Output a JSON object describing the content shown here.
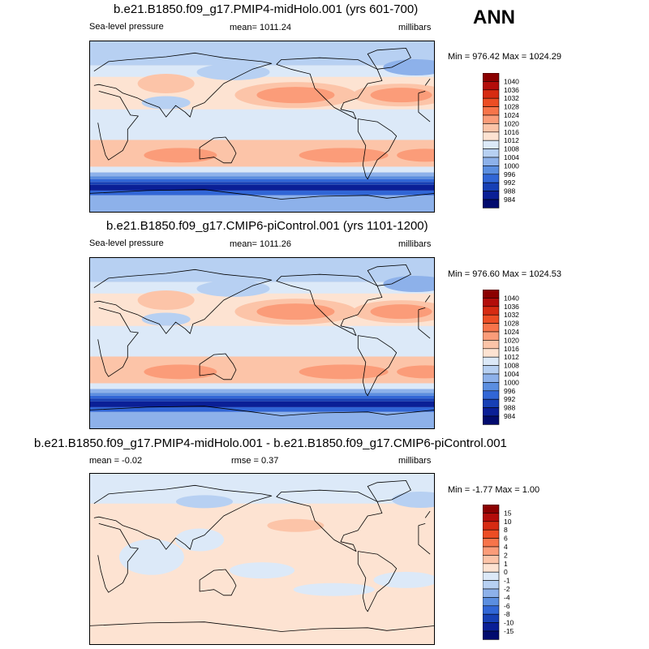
{
  "season": "ANN",
  "panels": [
    {
      "title": "b.e21.B1850.f09_g17.PMIP4-midHolo.001 (yrs 601-700)",
      "left_label": "Sea-level pressure",
      "center_label": "mean= 1011.24",
      "right_label": "millibars",
      "minmax": "Min = 976.42 Max = 1024.29",
      "colorbar_labels": [
        "1040",
        "1036",
        "1032",
        "1028",
        "1024",
        "1020",
        "1016",
        "1012",
        "1008",
        "1004",
        "1000",
        "996",
        "992",
        "988",
        "984"
      ]
    },
    {
      "title": "b.e21.B1850.f09_g17.CMIP6-piControl.001 (yrs 1101-1200)",
      "left_label": "Sea-level pressure",
      "center_label": "mean= 1011.26",
      "right_label": "millibars",
      "minmax": "Min = 976.60 Max = 1024.53",
      "colorbar_labels": [
        "1040",
        "1036",
        "1032",
        "1028",
        "1024",
        "1020",
        "1016",
        "1012",
        "1008",
        "1004",
        "1000",
        "996",
        "992",
        "988",
        "984"
      ]
    },
    {
      "title": "b.e21.B1850.f09_g17.PMIP4-midHolo.001 - b.e21.B1850.f09_g17.CMIP6-piControl.001",
      "left_label": "mean =  -0.02",
      "center_label": "rmse =   0.37",
      "right_label": "millibars",
      "minmax": "Min =  -1.77 Max =   1.00",
      "colorbar_labels": [
        "15",
        "10",
        "8",
        "6",
        "4",
        "2",
        "1",
        "0",
        "-1",
        "-2",
        "-4",
        "-6",
        "-8",
        "-10",
        "-15"
      ]
    }
  ],
  "colors": {
    "scale": [
      "#8b0000",
      "#b30d0a",
      "#d62b12",
      "#ec4d24",
      "#f7744a",
      "#fb9c79",
      "#fcc4a8",
      "#fde3d2",
      "#dce9f8",
      "#b7d0f2",
      "#8db1ea",
      "#5b8ee0",
      "#3166d6",
      "#1740b5",
      "#0a1f96",
      "#020b6e"
    ],
    "land": "#000000"
  },
  "chart_data": [
    {
      "type": "heatmap",
      "title": "b.e21.B1850.f09_g17.PMIP4-midHolo.001 (yrs 601-700)",
      "variable": "Sea-level pressure",
      "units": "millibars",
      "mean": 1011.24,
      "min": 976.42,
      "max": 1024.29,
      "levels": [
        984,
        988,
        992,
        996,
        1000,
        1004,
        1008,
        1012,
        1016,
        1020,
        1024,
        1028,
        1032,
        1036,
        1040
      ]
    },
    {
      "type": "heatmap",
      "title": "b.e21.B1850.f09_g17.CMIP6-piControl.001 (yrs 1101-1200)",
      "variable": "Sea-level pressure",
      "units": "millibars",
      "mean": 1011.26,
      "min": 976.6,
      "max": 1024.53,
      "levels": [
        984,
        988,
        992,
        996,
        1000,
        1004,
        1008,
        1012,
        1016,
        1020,
        1024,
        1028,
        1032,
        1036,
        1040
      ]
    },
    {
      "type": "heatmap",
      "title": "b.e21.B1850.f09_g17.PMIP4-midHolo.001 - b.e21.B1850.f09_g17.CMIP6-piControl.001",
      "units": "millibars",
      "mean": -0.02,
      "rmse": 0.37,
      "min": -1.77,
      "max": 1.0,
      "levels": [
        -15,
        -10,
        -8,
        -6,
        -4,
        -2,
        -1,
        0,
        1,
        2,
        4,
        6,
        8,
        10,
        15
      ]
    }
  ]
}
